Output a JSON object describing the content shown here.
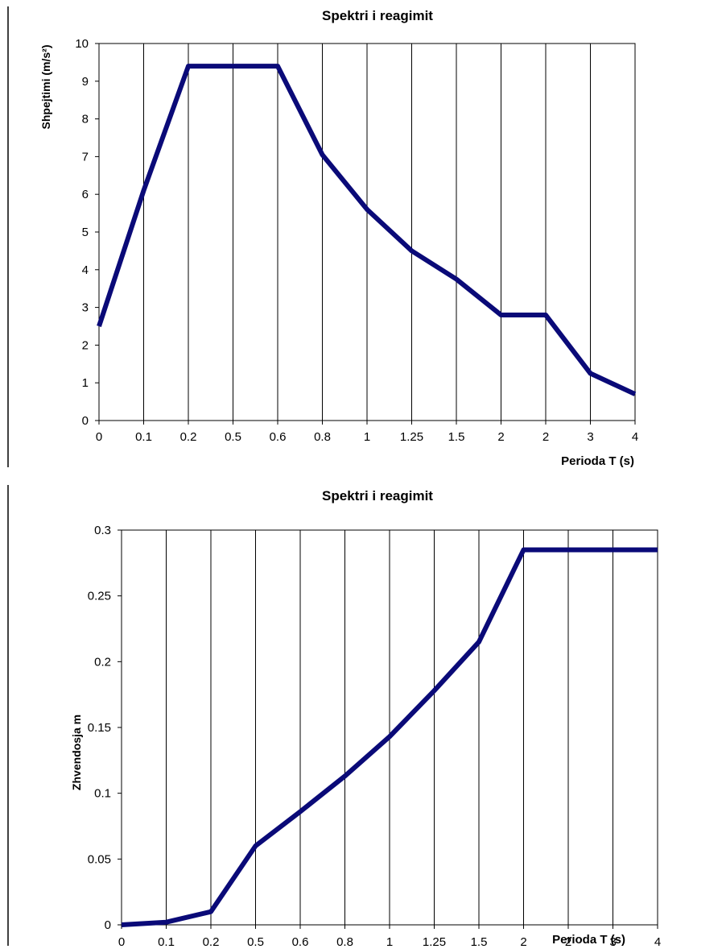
{
  "chart_data": [
    {
      "type": "line",
      "title": "Spektri i reagimit",
      "xlabel": "Perioda T (s)",
      "ylabel": "Shpejtimi (m/s²)",
      "categories": [
        "0",
        "0.1",
        "0.2",
        "0.5",
        "0.6",
        "0.8",
        "1",
        "1.25",
        "1.5",
        "2",
        "2",
        "3",
        "4"
      ],
      "series": [
        {
          "values": [
            2.5,
            6.1,
            9.4,
            9.4,
            9.4,
            7.05,
            5.6,
            4.5,
            3.75,
            2.8,
            2.8,
            1.25,
            0.7
          ]
        }
      ],
      "ylim": [
        0,
        10
      ],
      "yticks": [
        "0",
        "1",
        "2",
        "3",
        "4",
        "5",
        "6",
        "7",
        "8",
        "9",
        "10"
      ],
      "grid": "vertical",
      "color": "#0a0a78"
    },
    {
      "type": "line",
      "title": "Spektri i reagimit",
      "xlabel": "Perioda T (s)",
      "ylabel": "Zhvendosja  m",
      "categories": [
        "0",
        "0.1",
        "0.2",
        "0.5",
        "0.6",
        "0.8",
        "1",
        "1.25",
        "1.5",
        "2",
        "2",
        "3",
        "4"
      ],
      "series": [
        {
          "values": [
            0.0,
            0.002,
            0.01,
            0.06,
            0.086,
            0.113,
            0.143,
            0.178,
            0.215,
            0.285,
            0.285,
            0.285,
            0.285
          ]
        }
      ],
      "ylim": [
        0,
        0.3
      ],
      "yticks": [
        "0",
        "0.05",
        "0.1",
        "0.15",
        "0.2",
        "0.25",
        "0.3"
      ],
      "grid": "vertical",
      "color": "#0a0a78"
    }
  ]
}
